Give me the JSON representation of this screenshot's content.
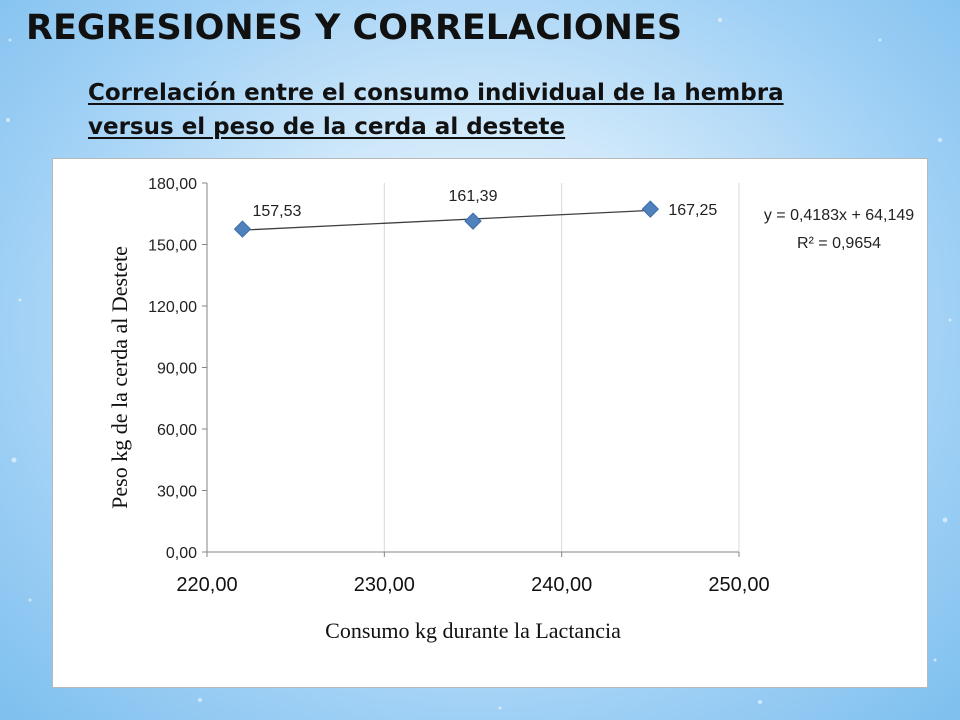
{
  "slide": {
    "title": "REGRESIONES Y CORRELACIONES",
    "subtitle_line1": "Correlación entre el consumo individual de la hembra",
    "subtitle_line2": "versus el peso de la cerda al destete"
  },
  "chart_data": {
    "type": "scatter",
    "title": "",
    "xlabel": "Consumo kg durante la Lactancia",
    "ylabel": "Peso kg de la cerda al Destete",
    "xlim": [
      220,
      250
    ],
    "ylim": [
      0,
      180
    ],
    "x_ticks": [
      "220,00",
      "230,00",
      "240,00",
      "250,00"
    ],
    "y_ticks": [
      "0,00",
      "30,00",
      "60,00",
      "90,00",
      "120,00",
      "150,00",
      "180,00"
    ],
    "grid": "vertical",
    "series": [
      {
        "points": [
          {
            "x": 222,
            "y": 157.53,
            "label": "157,53"
          },
          {
            "x": 235,
            "y": 161.39,
            "label": "161,39"
          },
          {
            "x": 245,
            "y": 167.25,
            "label": "167,25"
          }
        ]
      }
    ],
    "trendline": {
      "type": "linear",
      "slope": 0.4183,
      "intercept": 64.149,
      "equation": "y = 0,4183x + 64,149",
      "r_squared": "R² = 0,9654"
    },
    "colors": {
      "marker": "#4f81bd",
      "trendline": "#404040",
      "grid": "#d9d9d9",
      "axis": "#868686"
    }
  }
}
